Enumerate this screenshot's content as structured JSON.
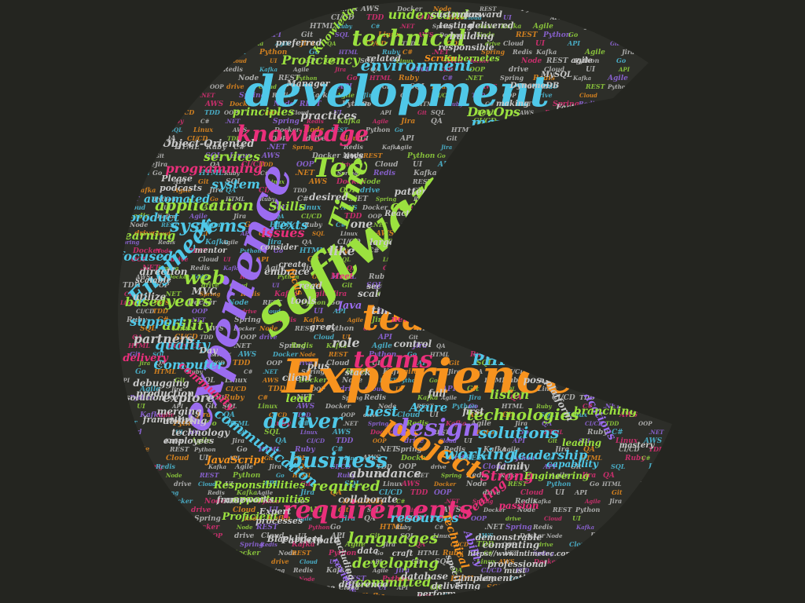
{
  "palette": {
    "background": "#242520",
    "shape_fill": "#2d2e29",
    "cyan": "#4fc8e8",
    "lime": "#9be13f",
    "orange": "#f7931e",
    "violet": "#9b6cf0",
    "pink": "#ea2f7b",
    "gray": "#c9c9c9"
  },
  "words": [
    "Experience",
    "software",
    "experience",
    "development",
    "team",
    "project",
    "requirements",
    "Software",
    "technical",
    "knowledge",
    "work",
    "teams",
    "design",
    "deliver",
    "Time",
    "Tec",
    "Engineer",
    "needs",
    "business",
    "languages",
    "solutions",
    "technologies",
    "working",
    "environment",
    "partner",
    "management",
    "systems",
    "application",
    "years",
    "quality",
    "ability",
    "web",
    "understand",
    "Proficiency",
    "services",
    "code",
    "cloud",
    "communication",
    "developing",
    "committed",
    "leadership",
    "required",
    "resources",
    "Strong",
    "best",
    "PHP",
    "DevOps",
    "programming",
    "capabilities",
    "company",
    "system",
    "Computer",
    "explore",
    "based",
    "support",
    "partners",
    "focused",
    "learning",
    "product",
    "automated",
    "Object-Oriented",
    "principles",
    "practices",
    "Skills",
    "texts",
    "issues",
    "like",
    "role",
    "learn",
    "listen",
    "abundance",
    "creating",
    "Azure",
    "Java",
    "JavaScript",
    "Scrum",
    "Kubernetes",
    "aws",
    "CSS",
    "MVC",
    "Responsibilities",
    "opportunities",
    "utilize",
    "delivery",
    "community",
    "lead",
    "time",
    "one",
    "Work",
    "Engineering",
    "capability",
    "applications",
    "leading",
    "first",
    "full",
    "client",
    "plus",
    "continuous",
    "patterns",
    "desired",
    "direction",
    "tools",
    "read",
    "scale",
    "better",
    "value",
    "control",
    "Idaho",
    "Degree",
    "Participate",
    "Technical",
    "Ability",
    "reviews",
    "database",
    "collaborate",
    "new",
    "merging",
    "debugging",
    "production",
    "utilizing",
    "technology",
    "employees",
    "framework",
    "resolution",
    "embrace",
    "family",
    "passion",
    "goal",
    "branching",
    "platform",
    "posted",
    "writing",
    "improvement",
    "strongly",
    "NoSQL",
    "mastery",
    "testing",
    "delivered",
    "building",
    "responsible",
    "forward",
    "customers",
    "Knowledge",
    "preferred",
    "related",
    "Manager",
    "DynamoDB",
    "MySQL",
    "fields",
    "agile",
    "React",
    "Angular",
    "Proficient",
    "frameworks",
    "processes",
    "Expert",
    "Blackboard",
    "including",
    "specific",
    "delivering",
    "perform",
    "computing",
    "demonstrable",
    "professional",
    "difference",
    "Confidence",
    "https://www.intimetec.com",
    "implementation",
    "regard",
    "craft",
    "must",
    "solve",
    "grow",
    "global",
    "clearly",
    "provide",
    "Understanding",
    "making",
    "Please",
    "podcasts",
    "Factory",
    "Bachelor",
    "consistent",
    "others",
    "version",
    "good",
    "large",
    "scalable",
    "mentor",
    "consider",
    "focus",
    "create",
    "stack",
    "Meet",
    "Day",
    "great",
    "data",
    "secure",
    "drive",
    "Cloud",
    "UI",
    "API",
    "Git",
    "SQL",
    "Linux",
    "AWS",
    "Docker",
    "Node",
    "REST",
    "Python",
    "Go",
    "HTML",
    "Ruby",
    "C#",
    ".NET",
    "Spring",
    "Redis",
    "Kafka",
    "Agile",
    "Jira",
    "QA",
    "CI/CD",
    "TDD",
    "OOP"
  ]
}
